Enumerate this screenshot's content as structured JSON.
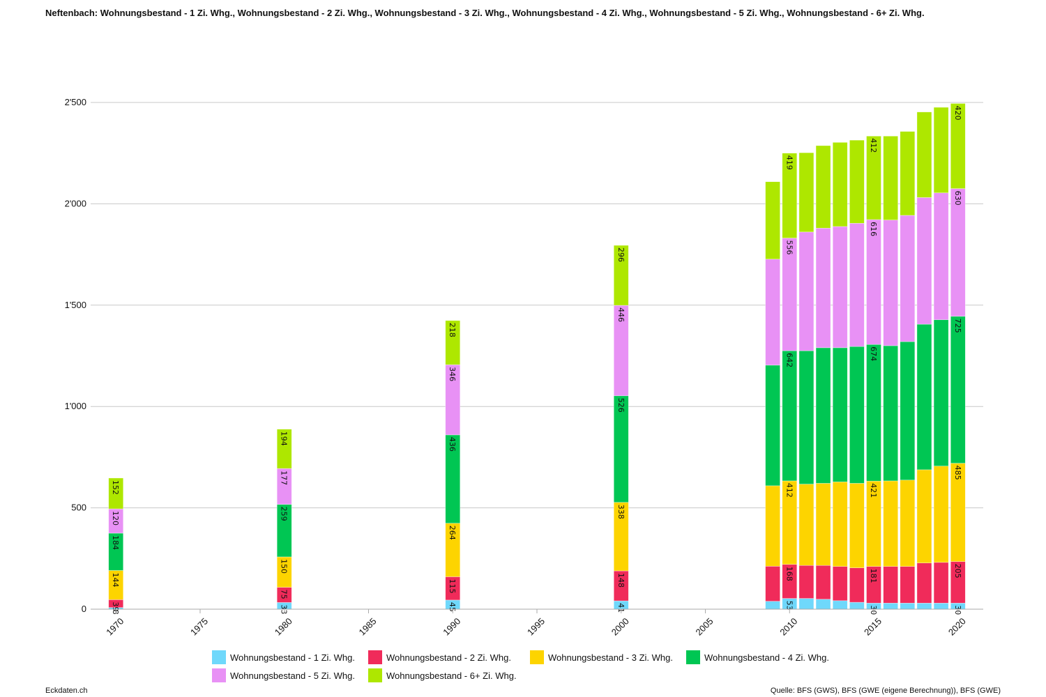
{
  "title": "Neftenbach: Wohnungsbestand - 1 Zi. Whg., Wohnungsbestand - 2 Zi. Whg., Wohnungsbestand - 3 Zi. Whg., Wohnungsbestand - 4 Zi. Whg., Wohnungsbestand - 5 Zi. Whg., Wohnungsbestand - 6+ Zi. Whg.",
  "footer": {
    "left": "Eckdaten.ch",
    "right": "Quelle: BFS (GWS), BFS (GWE (eigene Berechnung)), BFS (GWE)"
  },
  "chart_data": {
    "type": "bar",
    "stacked": true,
    "title": "Neftenbach: Wohnungsbestand - 1 Zi. Whg., Wohnungsbestand - 2 Zi. Whg., Wohnungsbestand - 3 Zi. Whg., Wohnungsbestand - 4 Zi. Whg., Wohnungsbestand - 5 Zi. Whg., Wohnungsbestand - 6+ Zi. Whg.",
    "xlabel": "",
    "ylabel": "",
    "xlim": [
      1968.5,
      2021.5
    ],
    "ylim": [
      0,
      2500
    ],
    "x_ticks": [
      "1970",
      "1975",
      "1980",
      "1985",
      "1990",
      "1995",
      "2000",
      "2005",
      "2010",
      "2015",
      "2020"
    ],
    "y_ticks": [
      {
        "value": 0,
        "label": "0"
      },
      {
        "value": 500,
        "label": "500"
      },
      {
        "value": 1000,
        "label": "1'000"
      },
      {
        "value": 1500,
        "label": "1'500"
      },
      {
        "value": 2000,
        "label": "2'000"
      },
      {
        "value": 2500,
        "label": "2'500"
      }
    ],
    "grid": true,
    "legend_position": "bottom",
    "x": [
      1970,
      1980,
      1990,
      2000,
      2009,
      2010,
      2011,
      2012,
      2013,
      2014,
      2015,
      2016,
      2017,
      2018,
      2019,
      2020
    ],
    "labeled_years": [
      1970,
      1980,
      1990,
      2000,
      2010,
      2015,
      2020
    ],
    "series": [
      {
        "name": "Wohnungsbestand - 1 Zi. Whg.",
        "color": "#6fd8fb",
        "values": [
          8,
          33,
          45,
          41,
          39,
          53,
          53,
          49,
          42,
          34,
          30,
          30,
          30,
          30,
          30,
          30
        ]
      },
      {
        "name": "Wohnungsbestand - 2 Zi. Whg.",
        "color": "#f02b5a",
        "values": [
          39,
          75,
          115,
          148,
          173,
          168,
          163,
          167,
          169,
          170,
          181,
          181,
          181,
          198,
          201,
          205
        ]
      },
      {
        "name": "Wohnungsbestand - 3 Zi. Whg.",
        "color": "#fdd400",
        "values": [
          144,
          150,
          264,
          338,
          397,
          412,
          401,
          405,
          417,
          417,
          421,
          422,
          426,
          460,
          475,
          485
        ]
      },
      {
        "name": "Wohnungsbestand - 4 Zi. Whg.",
        "color": "#00c653",
        "values": [
          184,
          259,
          436,
          526,
          595,
          642,
          658,
          669,
          662,
          675,
          674,
          667,
          683,
          718,
          722,
          725
        ]
      },
      {
        "name": "Wohnungsbestand - 5 Zi. Whg.",
        "color": "#e891f5",
        "values": [
          120,
          177,
          346,
          446,
          523,
          556,
          586,
          590,
          598,
          608,
          616,
          620,
          623,
          625,
          626,
          630
        ]
      },
      {
        "name": "Wohnungsbestand - 6+ Zi. Whg.",
        "color": "#aee700",
        "values": [
          152,
          194,
          218,
          296,
          382,
          419,
          391,
          407,
          415,
          410,
          412,
          414,
          414,
          422,
          422,
          420
        ]
      }
    ]
  }
}
